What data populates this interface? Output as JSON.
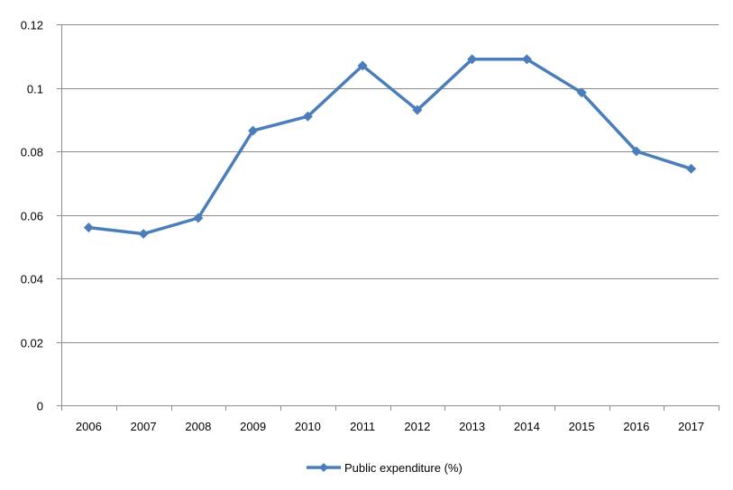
{
  "chart_data": {
    "type": "line",
    "x": [
      "2006",
      "2007",
      "2008",
      "2009",
      "2010",
      "2011",
      "2012",
      "2013",
      "2014",
      "2015",
      "2016",
      "2017"
    ],
    "series": [
      {
        "name": "Public expenditure (%)",
        "values": [
          0.056,
          0.054,
          0.059,
          0.0865,
          0.091,
          0.107,
          0.093,
          0.109,
          0.109,
          0.0985,
          0.08,
          0.0745
        ],
        "color": "#4a7ebb",
        "marker": "diamond"
      }
    ],
    "ylim": [
      0,
      0.12
    ],
    "yticks": [
      "0",
      "0.02",
      "0.04",
      "0.06",
      "0.08",
      "0.1",
      "0.12"
    ],
    "ytick_values": [
      0,
      0.02,
      0.04,
      0.06,
      0.08,
      0.1,
      0.12
    ],
    "grid": true,
    "legend": "bottom",
    "title": "",
    "xlabel": "",
    "ylabel": ""
  }
}
